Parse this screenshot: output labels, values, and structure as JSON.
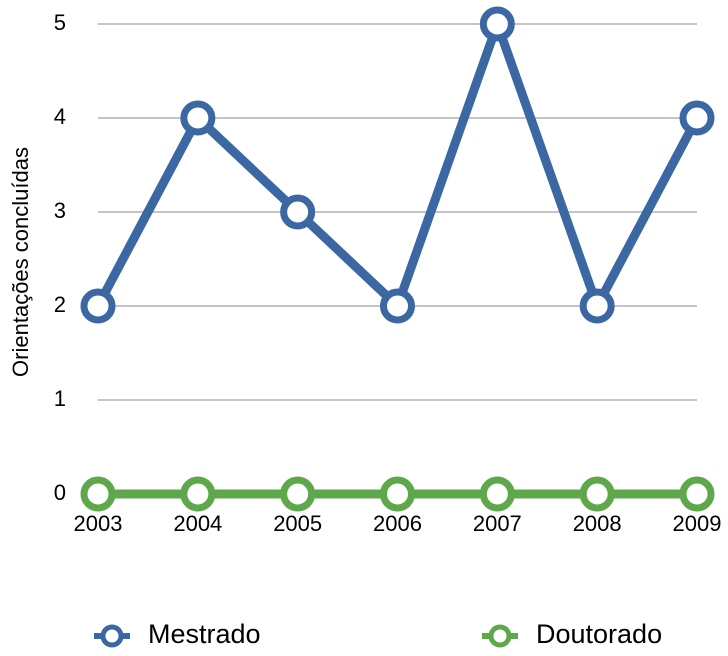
{
  "chart_data": {
    "type": "line",
    "y_label": "Orientações concluídas",
    "categories": [
      "2003",
      "2004",
      "2005",
      "2006",
      "2007",
      "2008",
      "2009"
    ],
    "series": [
      {
        "name": "Mestrado",
        "color": "#3b67a3",
        "values": [
          2,
          4,
          3,
          2,
          5,
          2,
          4
        ]
      },
      {
        "name": "Doutorado",
        "color": "#5ea84b",
        "values": [
          0,
          0,
          0,
          0,
          0,
          0,
          0
        ]
      }
    ],
    "ylim": [
      0,
      5
    ],
    "yticks": [
      0,
      1,
      2,
      3,
      4,
      5
    ],
    "grid": true,
    "legend": "bottom"
  }
}
